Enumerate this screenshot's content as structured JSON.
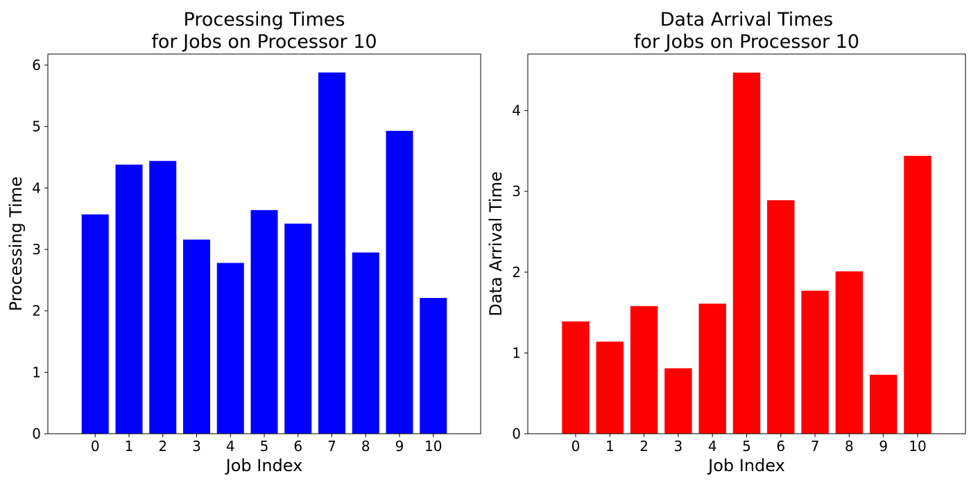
{
  "chart_data": [
    {
      "type": "bar",
      "title": [
        "Processing Times",
        "for Jobs on Processor 10"
      ],
      "xlabel": "Job Index",
      "ylabel": "Processing Time",
      "categories": [
        "0",
        "1",
        "2",
        "3",
        "4",
        "5",
        "6",
        "7",
        "8",
        "9",
        "10"
      ],
      "values": [
        3.57,
        4.38,
        4.44,
        3.16,
        2.78,
        3.64,
        3.42,
        5.88,
        2.95,
        4.93,
        2.21
      ],
      "ylim": [
        0,
        6.18
      ],
      "yticks": [
        0,
        1,
        2,
        3,
        4,
        5,
        6
      ],
      "color": "#0000ff",
      "grid": false
    },
    {
      "type": "bar",
      "title": [
        "Data Arrival Times",
        "for Jobs on Processor 10"
      ],
      "xlabel": "Job Index",
      "ylabel": "Data Arrival Time",
      "categories": [
        "0",
        "1",
        "2",
        "3",
        "4",
        "5",
        "6",
        "7",
        "8",
        "9",
        "10"
      ],
      "values": [
        1.39,
        1.14,
        1.58,
        0.81,
        1.61,
        4.47,
        2.89,
        1.77,
        2.01,
        0.73,
        3.44
      ],
      "ylim": [
        0,
        4.7
      ],
      "yticks": [
        0,
        1,
        2,
        3,
        4
      ],
      "color": "#ff0000",
      "grid": false
    }
  ]
}
